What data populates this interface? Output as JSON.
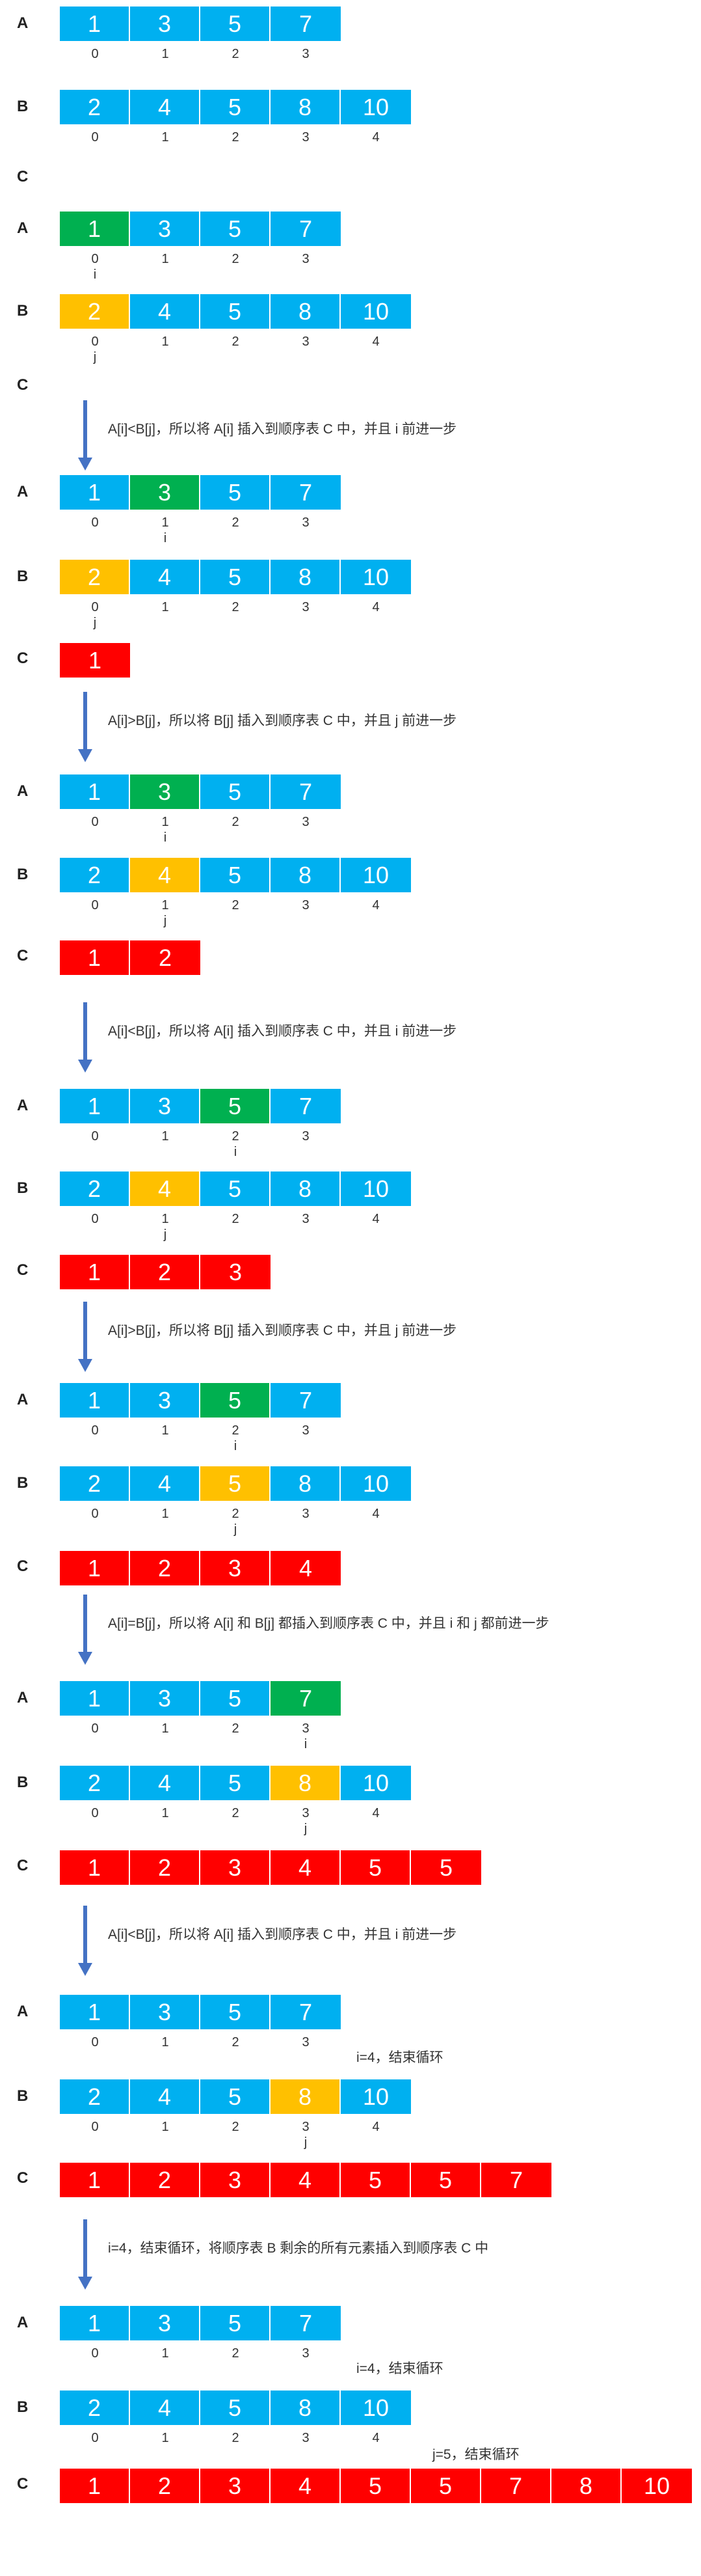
{
  "colors": {
    "blue": "#00B0F0",
    "green": "#00B050",
    "orange": "#FFC000",
    "red": "#FF0000",
    "arrow": "#4472C4"
  },
  "labels": {
    "A": "A",
    "B": "B",
    "C": "C"
  },
  "ptr_i": "i",
  "ptr_j": "j",
  "steps": [
    {
      "A": [
        "1",
        "3",
        "5",
        "7"
      ],
      "Ai": [
        "0",
        "1",
        "2",
        "3"
      ],
      "B": [
        "2",
        "4",
        "5",
        "8",
        "10"
      ],
      "Bi": [
        "0",
        "1",
        "2",
        "3",
        "4"
      ],
      "C": []
    },
    {
      "A": [
        "1",
        "3",
        "5",
        "7"
      ],
      "Ai": [
        "0",
        "1",
        "2",
        "3"
      ],
      "B": [
        "2",
        "4",
        "5",
        "8",
        "10"
      ],
      "Bi": [
        "0",
        "1",
        "2",
        "3",
        "4"
      ],
      "C": [],
      "ia": 0,
      "jb": 0
    },
    {
      "note": "A[i]<B[j]，所以将 A[i] 插入到顺序表 C 中，并且 i 前进一步",
      "A": [
        "1",
        "3",
        "5",
        "7"
      ],
      "Ai": [
        "0",
        "1",
        "2",
        "3"
      ],
      "B": [
        "2",
        "4",
        "5",
        "8",
        "10"
      ],
      "Bi": [
        "0",
        "1",
        "2",
        "3",
        "4"
      ],
      "C": [
        "1"
      ],
      "ia": 1,
      "jb": 0
    },
    {
      "note": "A[i]>B[j]，所以将 B[j] 插入到顺序表 C 中，并且 j 前进一步",
      "A": [
        "1",
        "3",
        "5",
        "7"
      ],
      "Ai": [
        "0",
        "1",
        "2",
        "3"
      ],
      "B": [
        "2",
        "4",
        "5",
        "8",
        "10"
      ],
      "Bi": [
        "0",
        "1",
        "2",
        "3",
        "4"
      ],
      "C": [
        "1",
        "2"
      ],
      "ia": 1,
      "jb": 1
    },
    {
      "note": "A[i]<B[j]，所以将 A[i] 插入到顺序表 C 中，并且 i 前进一步",
      "A": [
        "1",
        "3",
        "5",
        "7"
      ],
      "Ai": [
        "0",
        "1",
        "2",
        "3"
      ],
      "B": [
        "2",
        "4",
        "5",
        "8",
        "10"
      ],
      "Bi": [
        "0",
        "1",
        "2",
        "3",
        "4"
      ],
      "C": [
        "1",
        "2",
        "3"
      ],
      "ia": 2,
      "jb": 1
    },
    {
      "note": "A[i]>B[j]，所以将 B[j] 插入到顺序表 C 中，并且 j 前进一步",
      "A": [
        "1",
        "3",
        "5",
        "7"
      ],
      "Ai": [
        "0",
        "1",
        "2",
        "3"
      ],
      "B": [
        "2",
        "4",
        "5",
        "8",
        "10"
      ],
      "Bi": [
        "0",
        "1",
        "2",
        "3",
        "4"
      ],
      "C": [
        "1",
        "2",
        "3",
        "4"
      ],
      "ia": 2,
      "jb": 2
    },
    {
      "note": "A[i]=B[j]，所以将 A[i] 和 B[j] 都插入到顺序表 C 中，并且 i 和 j 都前进一步",
      "A": [
        "1",
        "3",
        "5",
        "7"
      ],
      "Ai": [
        "0",
        "1",
        "2",
        "3"
      ],
      "B": [
        "2",
        "4",
        "5",
        "8",
        "10"
      ],
      "Bi": [
        "0",
        "1",
        "2",
        "3",
        "4"
      ],
      "C": [
        "1",
        "2",
        "3",
        "4",
        "5",
        "5"
      ],
      "ia": 3,
      "jb": 3
    },
    {
      "note": "A[i]<B[j]，所以将 A[i] 插入到顺序表 C 中，并且 i 前进一步",
      "A": [
        "1",
        "3",
        "5",
        "7"
      ],
      "Ai": [
        "0",
        "1",
        "2",
        "3"
      ],
      "B": [
        "2",
        "4",
        "5",
        "8",
        "10"
      ],
      "Bi": [
        "0",
        "1",
        "2",
        "3",
        "4"
      ],
      "C": [
        "1",
        "2",
        "3",
        "4",
        "5",
        "5",
        "7"
      ],
      "jb": 3,
      "side_a": "i=4，结束循环"
    },
    {
      "note": "i=4，结束循环，将顺序表 B 剩余的所有元素插入到顺序表 C 中",
      "A": [
        "1",
        "3",
        "5",
        "7"
      ],
      "Ai": [
        "0",
        "1",
        "2",
        "3"
      ],
      "B": [
        "2",
        "4",
        "5",
        "8",
        "10"
      ],
      "Bi": [
        "0",
        "1",
        "2",
        "3",
        "4"
      ],
      "C": [
        "1",
        "2",
        "3",
        "4",
        "5",
        "5",
        "7",
        "8",
        "10"
      ],
      "side_a": "i=4，结束循环",
      "side_b": "j=5，结束循环"
    }
  ]
}
